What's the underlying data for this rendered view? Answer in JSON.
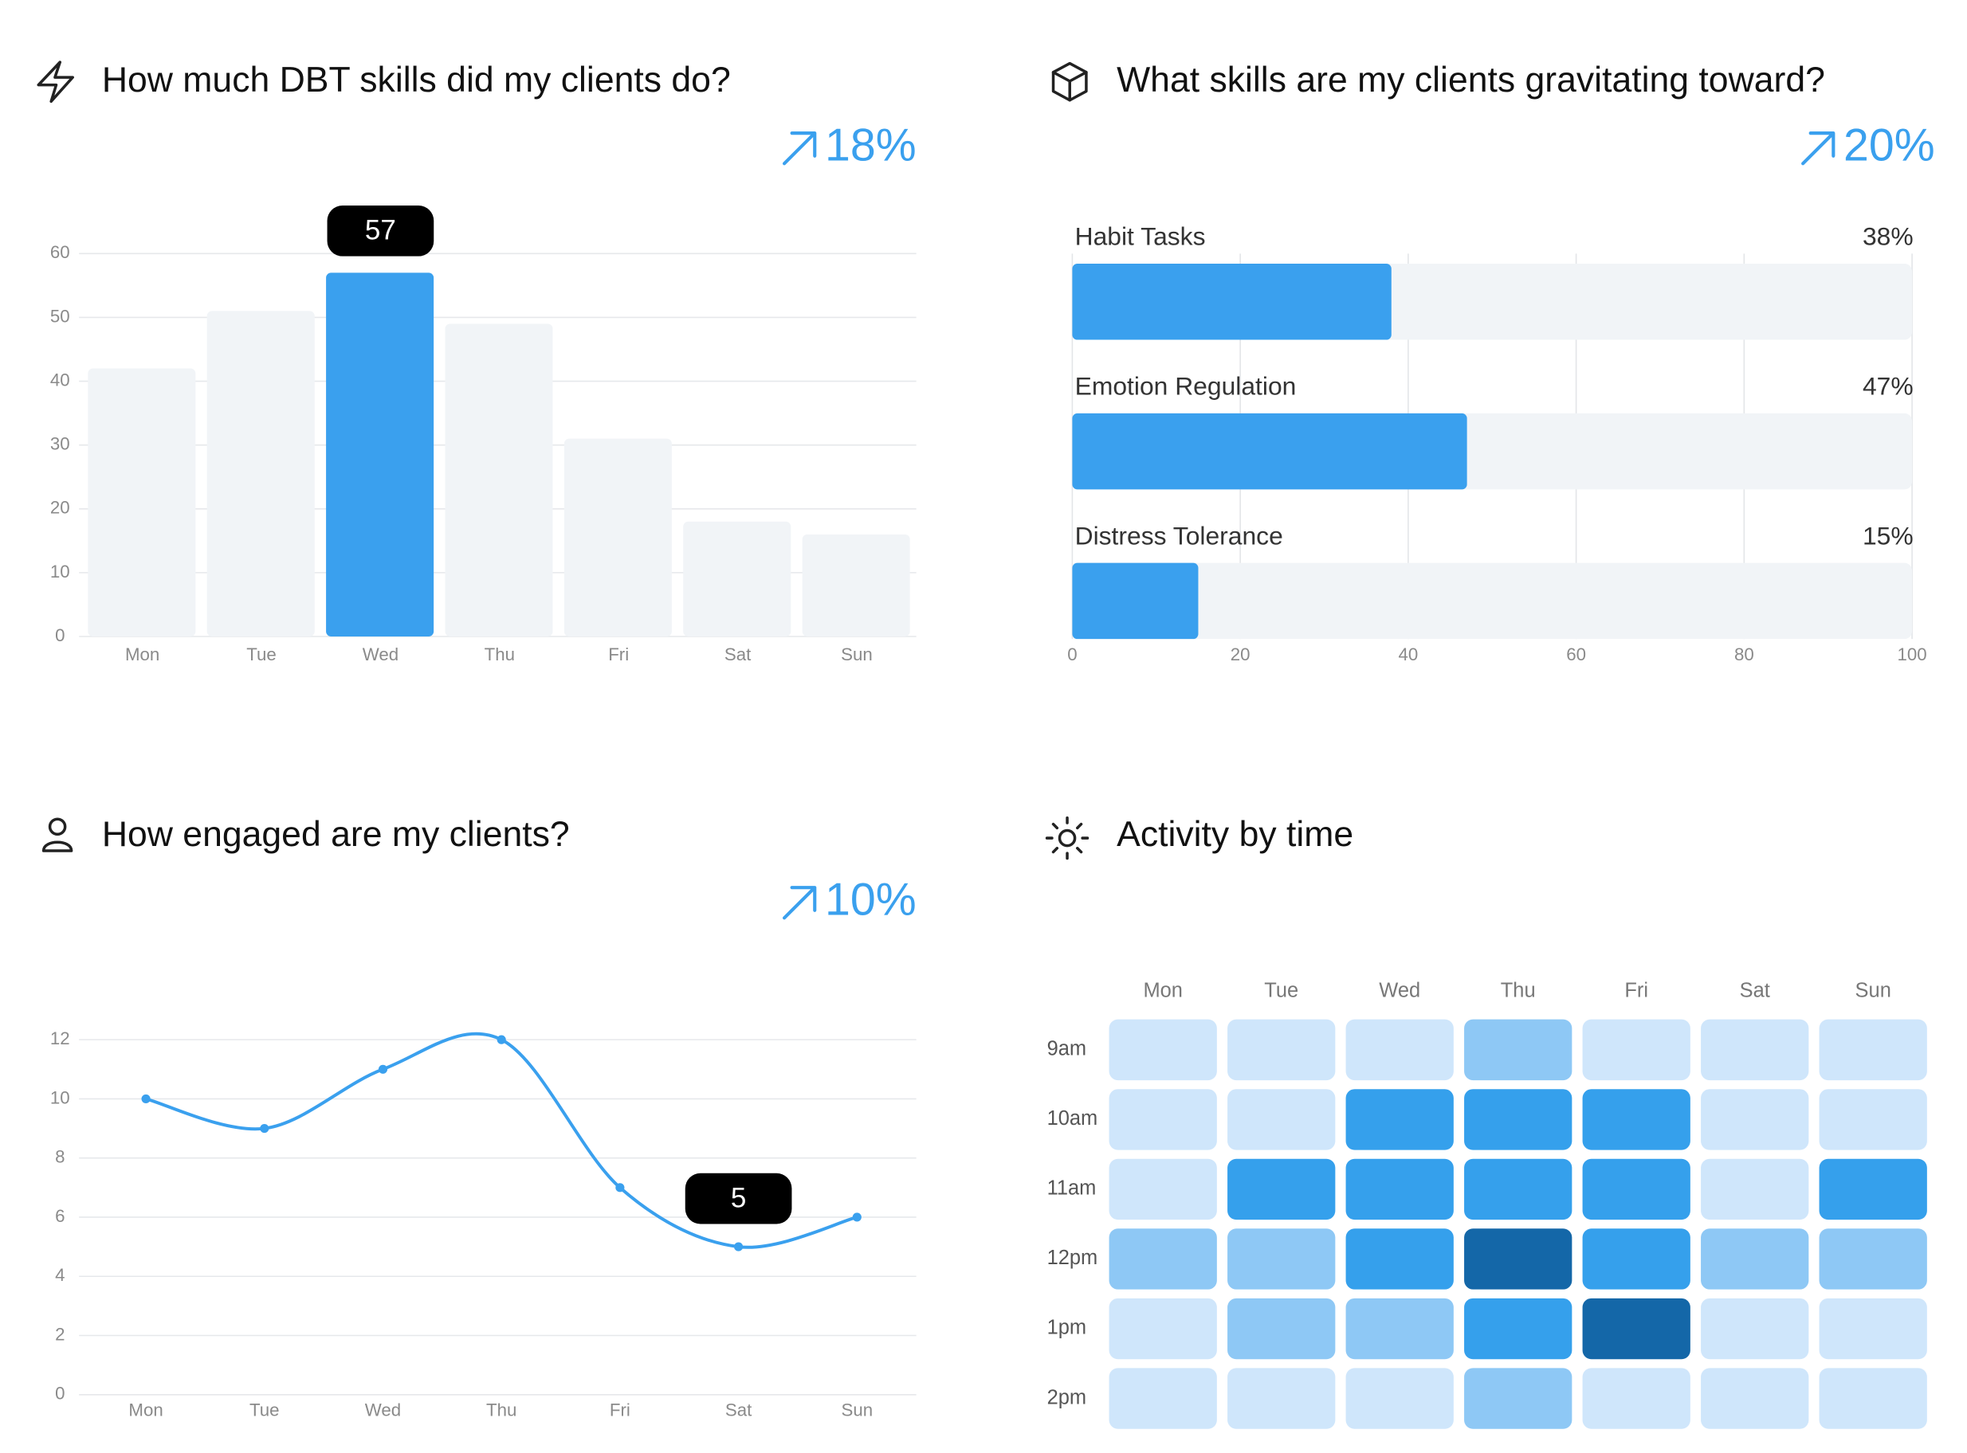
{
  "chart_data": [
    {
      "type": "bar",
      "title": "How much DBT skills did my clients do?",
      "change": "18%",
      "categories": [
        "Mon",
        "Tue",
        "Wed",
        "Thu",
        "Fri",
        "Sat",
        "Sun"
      ],
      "values": [
        42,
        51,
        57,
        49,
        31,
        18,
        16
      ],
      "ylim": [
        0,
        60
      ],
      "yticks": [
        0,
        10,
        20,
        30,
        40,
        50,
        60
      ],
      "color": "#3aa0ee",
      "base_color": "#f1f4f7",
      "highlight": 2,
      "grid": true
    },
    {
      "type": "hbar",
      "title": "What skills are my clients gravitating toward?",
      "change": "20%",
      "categories": [
        "Habit Tasks",
        "Emotion Regulation",
        "Distress Tolerance"
      ],
      "values": [
        38,
        47,
        15
      ],
      "value_labels": [
        "38%",
        "47%",
        "15%"
      ],
      "xlim": [
        0,
        100
      ],
      "xticks": [
        0,
        20,
        40,
        60,
        80,
        100
      ],
      "color": "#3aa0ee",
      "track_color": "#f1f4f7",
      "grid": true
    },
    {
      "type": "line",
      "title": "How engaged are my clients?",
      "change": "10%",
      "categories": [
        "Mon",
        "Tue",
        "Wed",
        "Thu",
        "Fri",
        "Sat",
        "Sun"
      ],
      "values": [
        10,
        9,
        11,
        12,
        7,
        5,
        6
      ],
      "ylim": [
        0,
        12
      ],
      "yticks": [
        0,
        2,
        4,
        6,
        8,
        10,
        12
      ],
      "color": "#3aa0ee",
      "highlight": 5,
      "grid": true
    },
    {
      "type": "heatmap",
      "title": "Activity by time",
      "x_categories": [
        "Mon",
        "Tue",
        "Wed",
        "Thu",
        "Fri",
        "Sat",
        "Sun"
      ],
      "y_categories": [
        "9am",
        "10am",
        "11am",
        "12pm",
        "1pm",
        "2pm"
      ],
      "values": [
        [
          1,
          1,
          1,
          2,
          1,
          1,
          1
        ],
        [
          1,
          1,
          3,
          3,
          3,
          1,
          1
        ],
        [
          1,
          3,
          3,
          3,
          3,
          1,
          3
        ],
        [
          2,
          2,
          3,
          4,
          3,
          2,
          2
        ],
        [
          1,
          2,
          2,
          3,
          4,
          1,
          1
        ],
        [
          1,
          1,
          1,
          2,
          1,
          1,
          1
        ]
      ],
      "colors": [
        "#cfe6fb",
        "#8ec8f5",
        "#35a0ec",
        "#1467a8"
      ]
    }
  ]
}
